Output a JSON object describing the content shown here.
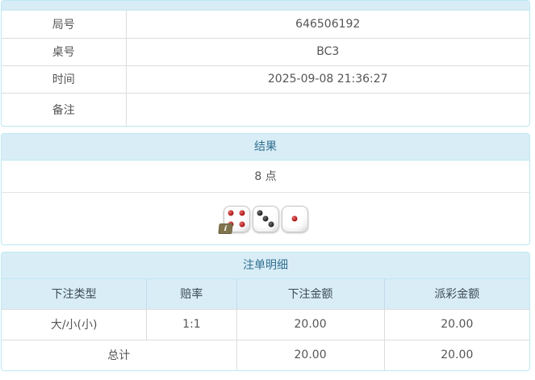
{
  "info_table": {
    "rows": [
      {
        "label": "局号",
        "value": "646506192"
      },
      {
        "label": "桌号",
        "value": "BC3"
      },
      {
        "label": "时间",
        "value": "2025-09-08 21:36:27"
      },
      {
        "label": "备注",
        "value": ""
      }
    ]
  },
  "result_panel": {
    "title": "结果",
    "points": "8 点",
    "dice": [
      {
        "value": 4,
        "color": "red"
      },
      {
        "value": 3,
        "color": "black"
      },
      {
        "value": 1,
        "color": "red"
      }
    ],
    "info_badge": "i"
  },
  "bets_panel": {
    "title": "注单明细",
    "columns": [
      "下注类型",
      "赔率",
      "下注金额",
      "派彩金额"
    ],
    "rows": [
      {
        "type": "大/小(小)",
        "odds": "1:1",
        "bet": "20.00",
        "payout": "20.00"
      }
    ],
    "total": {
      "label": "总计",
      "bet": "20.00",
      "payout": "20.00"
    }
  },
  "colors": {
    "panel_border": "#bce8f1",
    "panel_header_bg": "#d9edf7",
    "panel_header_text": "#31708f",
    "grid_line": "#dddddd",
    "body_text": "#555555",
    "odds_red": "#e53333"
  }
}
